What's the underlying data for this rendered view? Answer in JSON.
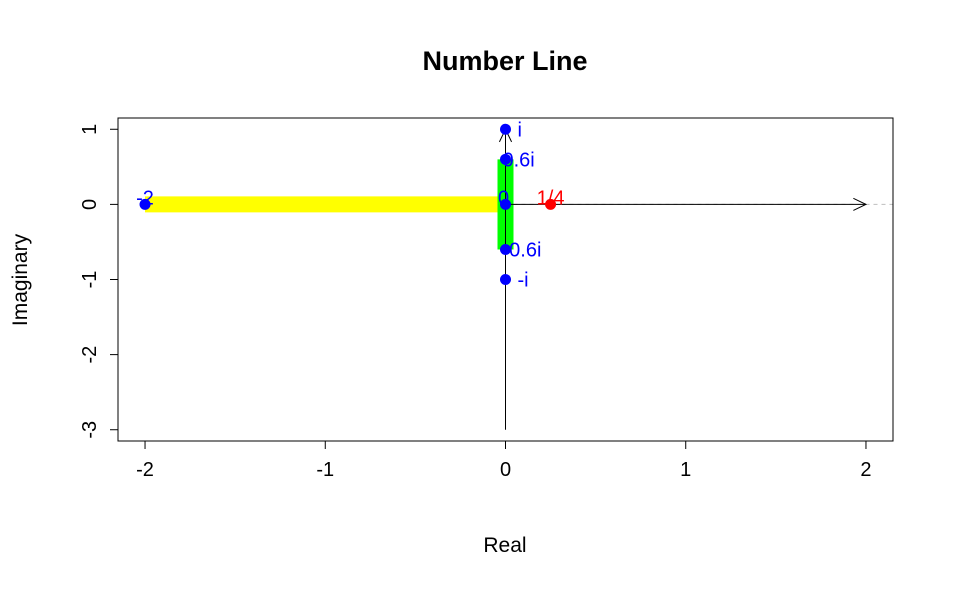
{
  "chart_data": {
    "type": "scatter",
    "title": "Number Line",
    "xlabel": "Real",
    "ylabel": "Imaginary",
    "xlim": [
      -2.15,
      2.15
    ],
    "ylim": [
      -3.15,
      1.15
    ],
    "xticks": [
      -2,
      -1,
      0,
      1,
      2
    ],
    "yticks": [
      -3,
      -2,
      -1,
      0,
      1
    ],
    "xtick_labels": [
      "-2",
      "-1",
      "0",
      "1",
      "2"
    ],
    "ytick_labels": [
      "-3",
      "-2",
      "-1",
      "0",
      "1"
    ],
    "grid": false,
    "segments": [
      {
        "from": [
          -2,
          0
        ],
        "to": [
          0,
          0
        ],
        "color": "#ffff00"
      },
      {
        "from": [
          0,
          -0.6
        ],
        "to": [
          0,
          0.6
        ],
        "color": "#00ff00"
      }
    ],
    "arrows": [
      {
        "from": [
          0,
          0
        ],
        "to": [
          2,
          0
        ],
        "color": "#000000"
      },
      {
        "from": [
          0,
          -3
        ],
        "to": [
          0,
          1
        ],
        "color": "#000000"
      }
    ],
    "points": [
      {
        "x": -2,
        "y": 0,
        "label": "-2",
        "color": "#0000ff"
      },
      {
        "x": 0,
        "y": 1,
        "label": "i",
        "color": "#0000ff"
      },
      {
        "x": 0,
        "y": 0.6,
        "label": "0.6i",
        "color": "#0000ff"
      },
      {
        "x": 0,
        "y": 0,
        "label": "0",
        "color": "#0000ff"
      },
      {
        "x": 0,
        "y": -0.6,
        "label": "-0.6i",
        "color": "#0000ff"
      },
      {
        "x": 0,
        "y": -1,
        "label": "-i",
        "color": "#0000ff"
      },
      {
        "x": 0.25,
        "y": 0,
        "label": "1/4",
        "color": "#ff0000"
      }
    ],
    "reference_line": {
      "y": 0,
      "style": "dashed",
      "color": "#bebebe"
    }
  }
}
